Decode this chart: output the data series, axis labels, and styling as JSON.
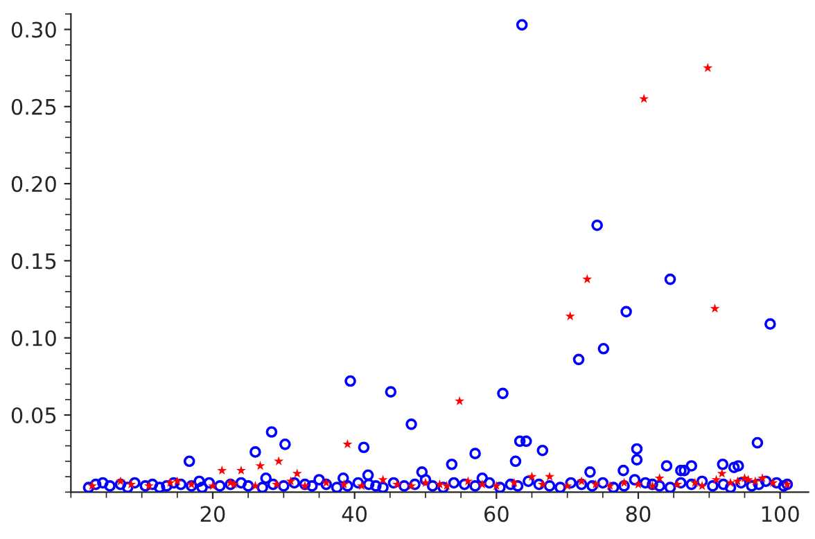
{
  "chart_data": {
    "type": "scatter",
    "xlim": [
      0,
      104
    ],
    "ylim": [
      0,
      0.31
    ],
    "xticks": [
      20,
      40,
      60,
      80,
      100
    ],
    "yticks": [
      0.05,
      {
        "value": 0.1,
        "label": "0.10"
      },
      0.15,
      {
        "value": 0.2,
        "label": "0.20"
      },
      0.25,
      {
        "value": 0.3,
        "label": "0.30"
      }
    ],
    "grid": false,
    "legend": false,
    "series": [
      {
        "color": "#0000ff",
        "marker": "circle",
        "x": [
          63.6,
          74.2,
          84.5,
          78.3,
          98.6,
          75.1,
          71.6,
          39.4,
          60.9,
          45.1,
          48.0,
          41.3,
          28.3,
          30.2,
          26.0,
          16.7,
          57.0,
          53.7,
          63.3,
          64.2,
          62.7,
          66.5,
          79.8,
          79.8,
          96.8,
          84.0,
          91.9,
          94.1,
          93.5,
          86.0,
          86.5,
          87.5,
          77.9,
          73.2,
          27.5,
          49.5,
          41.9,
          18.1,
          38.4,
          2.5,
          3.5,
          4.5,
          5.5,
          7,
          8,
          9,
          10.5,
          11.5,
          12.5,
          13.5,
          14.5,
          15.5,
          17,
          18.5,
          19.5,
          21,
          22.5,
          24,
          25,
          27,
          28.5,
          30,
          31.5,
          33,
          34,
          35,
          36,
          37.5,
          39,
          40.5,
          42,
          43,
          44,
          45.5,
          47,
          48.5,
          50,
          51,
          52.5,
          54,
          55.5,
          57,
          58,
          59,
          60.5,
          62,
          63,
          64.5,
          66,
          67.5,
          69,
          70.5,
          72,
          73.5,
          75,
          76.5,
          78,
          79.5,
          81,
          82,
          83,
          84.5,
          86,
          87.5,
          89,
          90.5,
          92,
          93,
          94.5,
          96,
          97,
          98,
          99.5,
          100.5,
          101
        ],
        "values": [
          0.303,
          0.173,
          0.138,
          0.117,
          0.109,
          0.093,
          0.086,
          0.072,
          0.064,
          0.065,
          0.044,
          0.029,
          0.039,
          0.031,
          0.026,
          0.02,
          0.025,
          0.018,
          0.033,
          0.033,
          0.02,
          0.027,
          0.028,
          0.021,
          0.032,
          0.017,
          0.018,
          0.017,
          0.016,
          0.014,
          0.014,
          0.017,
          0.014,
          0.013,
          0.009,
          0.013,
          0.011,
          0.007,
          0.009,
          0.003,
          0.005,
          0.006,
          0.004,
          0.005,
          0.003,
          0.006,
          0.004,
          0.005,
          0.003,
          0.004,
          0.006,
          0.005,
          0.004,
          0.003,
          0.006,
          0.004,
          0.005,
          0.006,
          0.004,
          0.003,
          0.005,
          0.004,
          0.006,
          0.005,
          0.004,
          0.008,
          0.005,
          0.003,
          0.004,
          0.006,
          0.005,
          0.004,
          0.003,
          0.006,
          0.004,
          0.005,
          0.008,
          0.004,
          0.003,
          0.006,
          0.005,
          0.004,
          0.009,
          0.006,
          0.003,
          0.005,
          0.004,
          0.007,
          0.005,
          0.004,
          0.003,
          0.006,
          0.005,
          0.004,
          0.006,
          0.003,
          0.004,
          0.008,
          0.006,
          0.005,
          0.004,
          0.003,
          0.006,
          0.005,
          0.007,
          0.004,
          0.005,
          0.003,
          0.006,
          0.004,
          0.005,
          0.007,
          0.006,
          0.004,
          0.005
        ]
      },
      {
        "color": "#ff0000",
        "marker": "star",
        "x": [
          80.8,
          89.8,
          90.8,
          72.8,
          70.4,
          54.8,
          39.0,
          21.3,
          24.0,
          26.7,
          29.3,
          31.9,
          3,
          7,
          8.5,
          11,
          14,
          15,
          17,
          20,
          22.5,
          23,
          26,
          29,
          31,
          33,
          36,
          38.5,
          41,
          44,
          46,
          48,
          50,
          52,
          53,
          56,
          58,
          60,
          62.5,
          65,
          66.5,
          67.5,
          70,
          72,
          74,
          76,
          78,
          80,
          82,
          83,
          85.5,
          88,
          89,
          91,
          91.8,
          93,
          94,
          95,
          95.5,
          96.5,
          97.5,
          99,
          101
        ],
        "values": [
          0.255,
          0.275,
          0.119,
          0.138,
          0.114,
          0.059,
          0.031,
          0.014,
          0.014,
          0.017,
          0.02,
          0.012,
          0.004,
          0.007,
          0.005,
          0.004,
          0.006,
          0.007,
          0.005,
          0.004,
          0.006,
          0.005,
          0.004,
          0.005,
          0.007,
          0.004,
          0.006,
          0.005,
          0.004,
          0.008,
          0.005,
          0.004,
          0.006,
          0.005,
          0.004,
          0.007,
          0.005,
          0.004,
          0.006,
          0.01,
          0.005,
          0.01,
          0.004,
          0.007,
          0.005,
          0.004,
          0.006,
          0.005,
          0.004,
          0.009,
          0.005,
          0.006,
          0.004,
          0.008,
          0.012,
          0.006,
          0.007,
          0.009,
          0.008,
          0.007,
          0.009,
          0.006,
          0.005
        ]
      }
    ]
  }
}
